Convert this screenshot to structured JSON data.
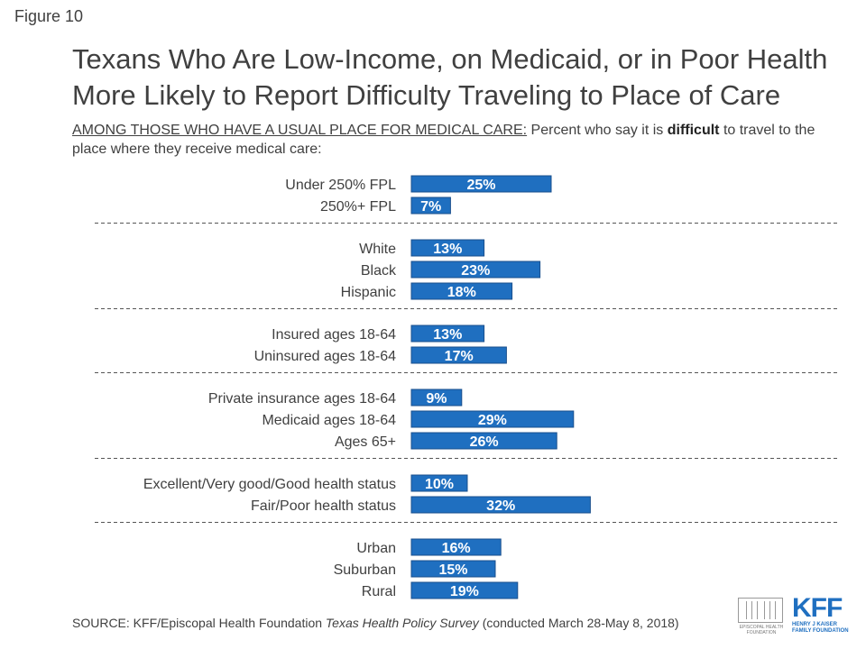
{
  "figure_label": "Figure 10",
  "title": "Texans Who Are Low-Income, on Medicaid, or in Poor Health More Likely to Report Difficulty Traveling to Place of Care",
  "subtitle": {
    "prefix": "AMONG THOSE WHO HAVE A USUAL PLACE FOR MEDICAL CARE:",
    "text_a": " Percent who say it is ",
    "emphasis": "difficult",
    "text_b": " to travel to the place where they receive medical care:"
  },
  "source": {
    "prefix": "SOURCE: KFF/Episcopal Health Foundation ",
    "italic": "Texas Health Policy Survey",
    "suffix": " (conducted March 28-May 8, 2018)"
  },
  "logos": {
    "ehf_name": "EPISCOPAL HEALTH FOUNDATION",
    "kff_mark": "KFF",
    "kff_name": "HENRY J KAISER FAMILY FOUNDATION"
  },
  "colors": {
    "bar": "#1f6fc0",
    "bar_border": "#1a4f8c",
    "label_text": "#ffffff",
    "divider": "#555555"
  },
  "chart_data": {
    "type": "bar",
    "orientation": "horizontal",
    "value_unit": "%",
    "xlim": [
      0,
      35
    ],
    "groups": [
      {
        "categories": [
          "Under 250% FPL",
          "250%+ FPL"
        ],
        "values": [
          25,
          7
        ]
      },
      {
        "categories": [
          "White",
          "Black",
          "Hispanic"
        ],
        "values": [
          13,
          23,
          18
        ]
      },
      {
        "categories": [
          "Insured ages 18-64",
          "Uninsured ages 18-64"
        ],
        "values": [
          13,
          17
        ]
      },
      {
        "categories": [
          "Private insurance ages 18-64",
          "Medicaid ages 18-64",
          "Ages 65+"
        ],
        "values": [
          9,
          29,
          26
        ]
      },
      {
        "categories": [
          "Excellent/Very good/Good health status",
          "Fair/Poor health status"
        ],
        "values": [
          10,
          32
        ]
      },
      {
        "categories": [
          "Urban",
          "Suburban",
          "Rural"
        ],
        "values": [
          16,
          15,
          19
        ]
      }
    ]
  }
}
